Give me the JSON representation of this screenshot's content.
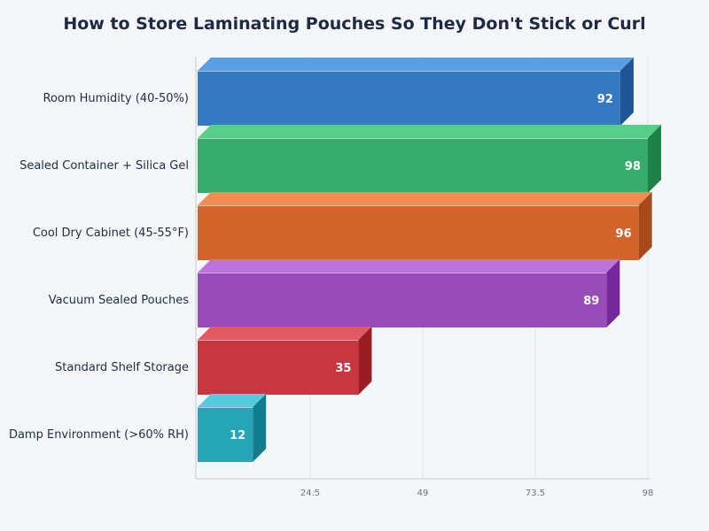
{
  "chart_data": {
    "type": "bar",
    "orientation": "horizontal",
    "style": "3d",
    "title": "How to Store Laminating Pouches So They Don't Stick or Curl",
    "xlabel": "",
    "ylabel": "",
    "xlim": [
      0,
      98
    ],
    "xticks": [
      24.5,
      49,
      73.5,
      98
    ],
    "grid": true,
    "legend": "none",
    "categories": [
      "Room Humidity (40-50%)",
      "Sealed Container + Silica Gel",
      "Cool Dry Cabinet (45-55°F)",
      "Vacuum Sealed Pouches",
      "Standard Shelf Storage",
      "Damp Environment (>60% RH)"
    ],
    "values": [
      92,
      98,
      96,
      89,
      35,
      12
    ],
    "colors": {
      "front": [
        "#3579c2",
        "#37ab6b",
        "#d3642c",
        "#994bb8",
        "#c8373f",
        "#26a5b7"
      ],
      "top": [
        "#5a9ee3",
        "#57cf8a",
        "#ef8e52",
        "#bd73dc",
        "#e15a62",
        "#54ccdb"
      ],
      "side": [
        "#1f5596",
        "#1e8148",
        "#a84918",
        "#74289a",
        "#9a1d25",
        "#117d8f"
      ]
    }
  }
}
